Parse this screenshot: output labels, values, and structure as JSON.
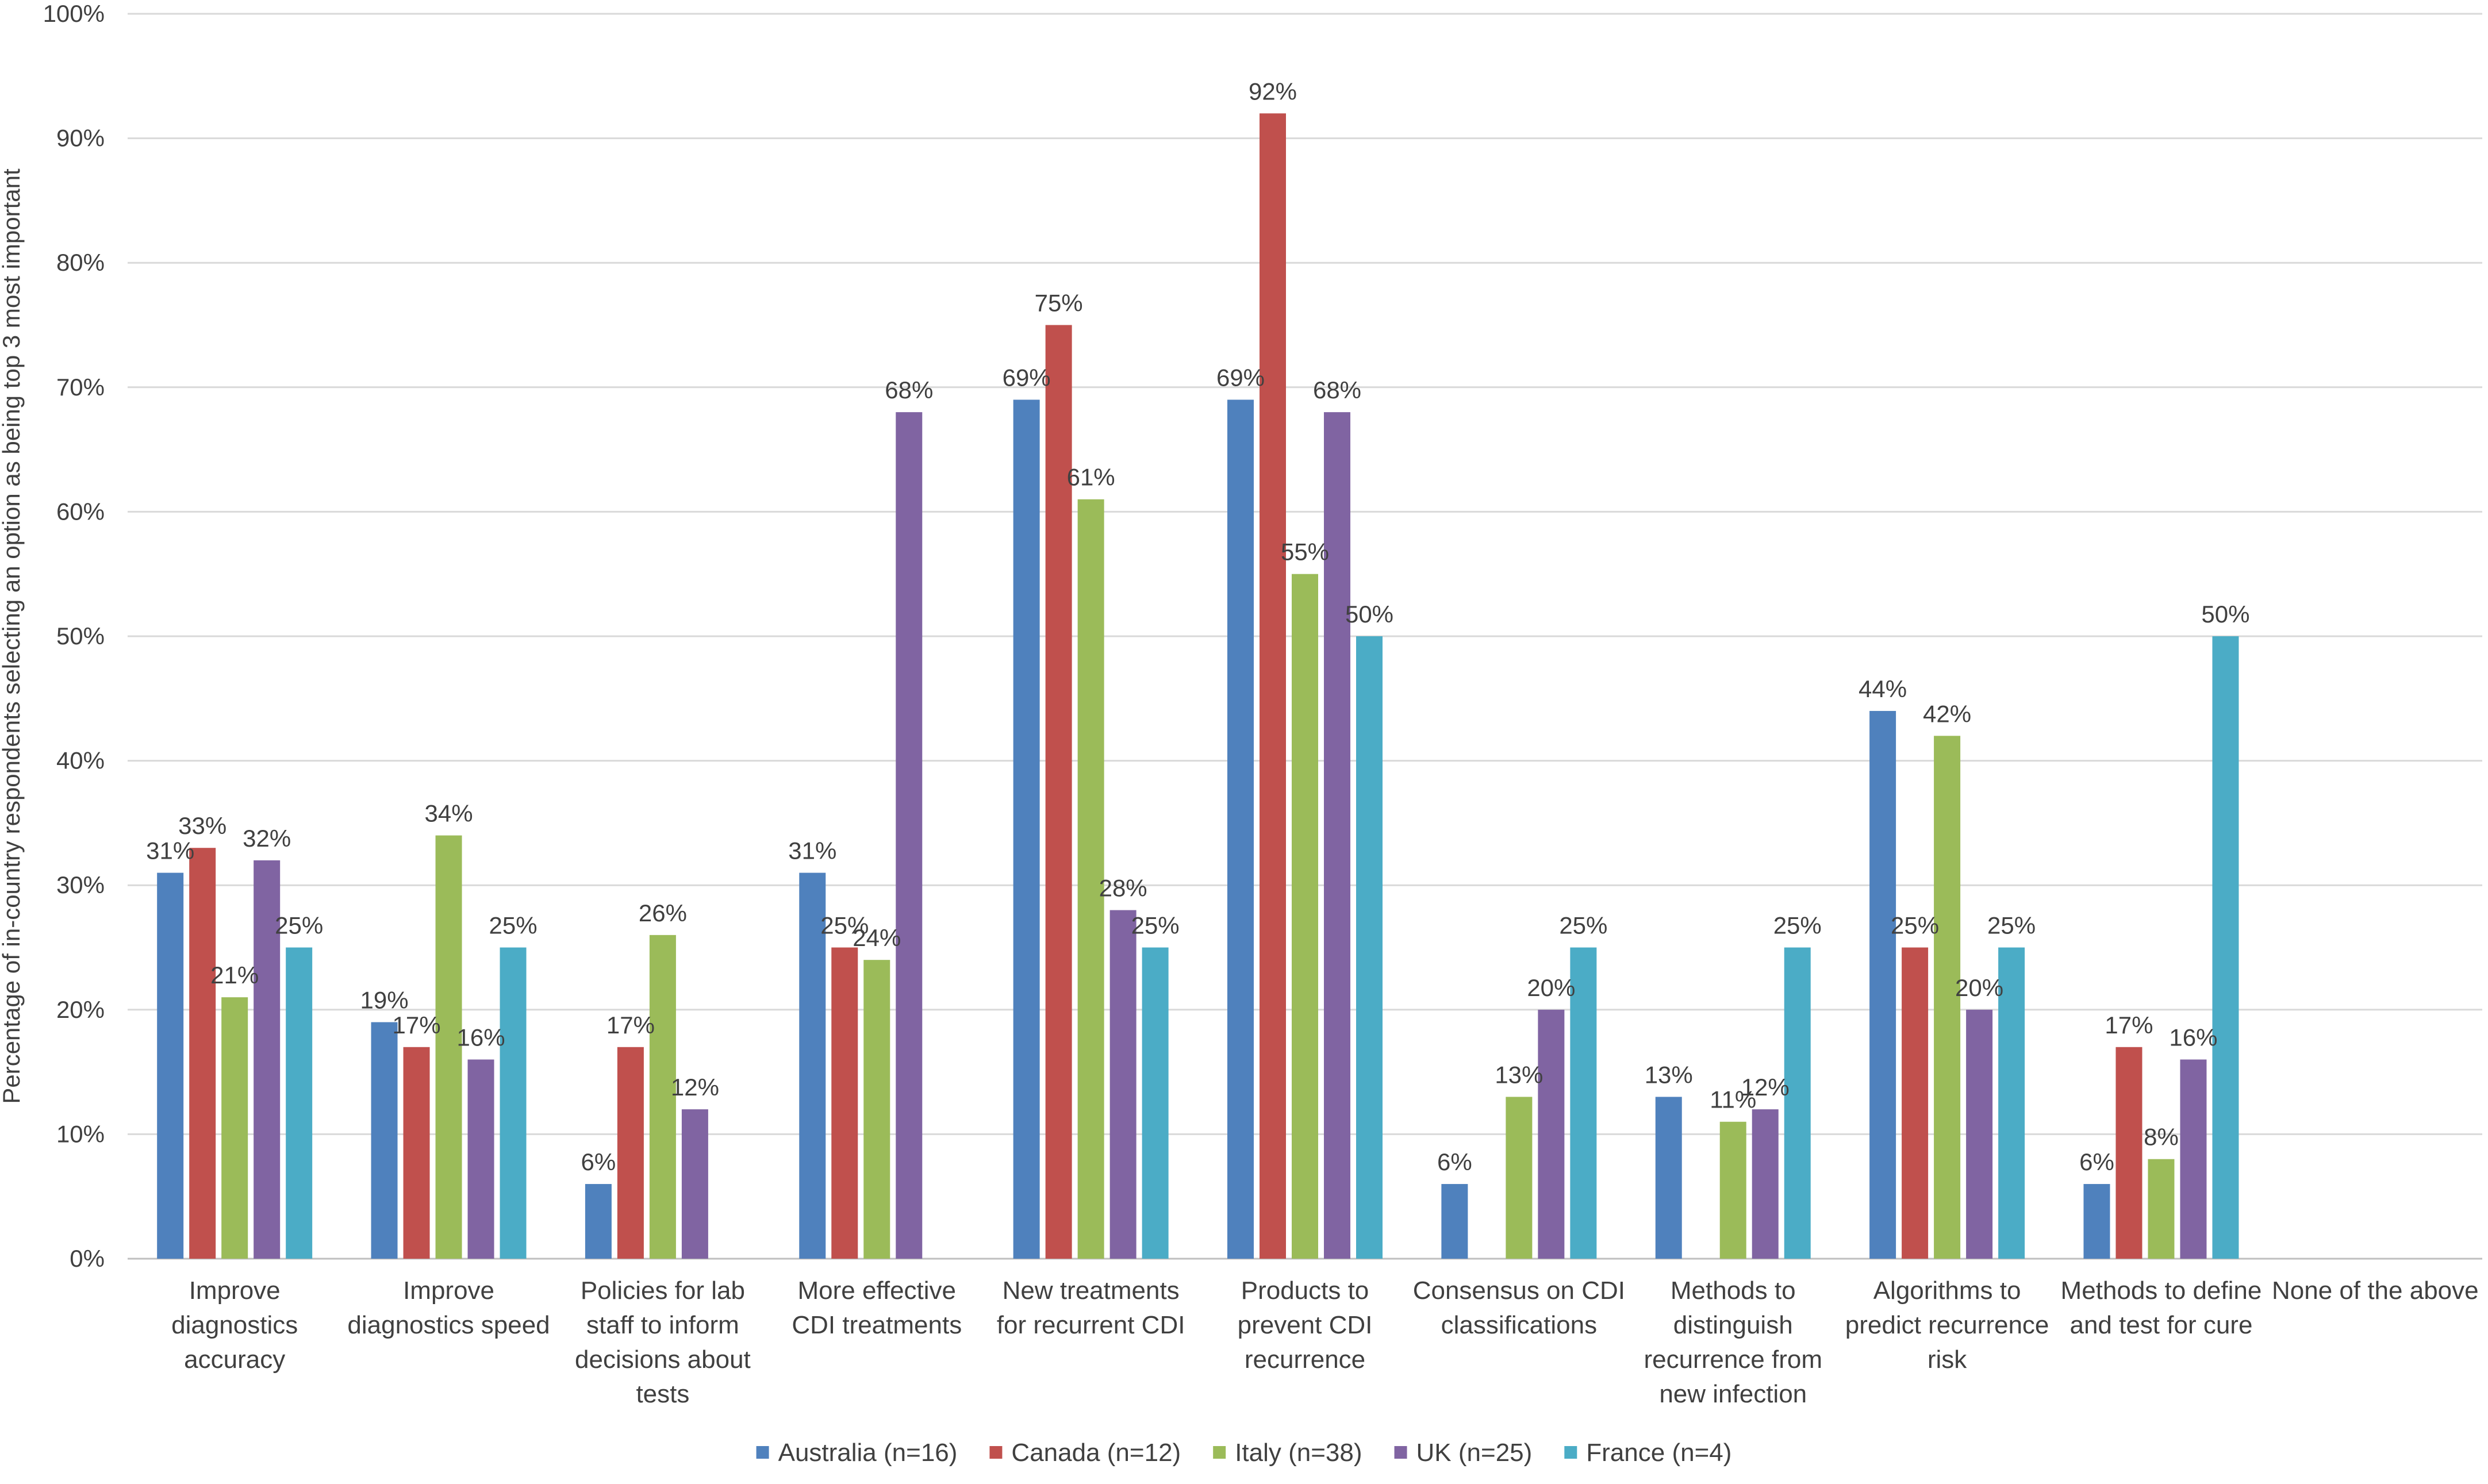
{
  "chart_data": {
    "type": "bar",
    "title": "",
    "xlabel": "",
    "ylabel": "Percentage of in-country respondents selecting an option as being top 3 most important",
    "ylim": [
      0,
      100
    ],
    "yticks": [
      "0%",
      "10%",
      "20%",
      "30%",
      "40%",
      "50%",
      "60%",
      "70%",
      "80%",
      "90%",
      "100%"
    ],
    "grid": true,
    "legend_position": "bottom",
    "categories": [
      [
        "Improve",
        "diagnostics",
        "accuracy"
      ],
      [
        "Improve",
        "diagnostics speed"
      ],
      [
        "Policies for lab",
        "staff to inform",
        "decisions about",
        "tests"
      ],
      [
        "More effective",
        "CDI treatments"
      ],
      [
        "New treatments",
        "for recurrent CDI"
      ],
      [
        "Products to",
        "prevent CDI",
        "recurrence"
      ],
      [
        "Consensus on CDI",
        "classifications"
      ],
      [
        "Methods to",
        "distinguish",
        "recurrence from",
        "new infection"
      ],
      [
        "Algorithms to",
        "predict recurrence",
        "risk"
      ],
      [
        "Methods to define",
        "and test for cure"
      ],
      [
        "None of the above"
      ]
    ],
    "series": [
      {
        "name": "Australia (n=16)",
        "color": "#4F81BD",
        "values": [
          31,
          19,
          6,
          31,
          69,
          69,
          6,
          13,
          44,
          6,
          null
        ],
        "labels": [
          "31%",
          "19%",
          "6%",
          "31%",
          "69%",
          "69%",
          "6%",
          "13%",
          "44%",
          "6%",
          null
        ]
      },
      {
        "name": "Canada (n=12)",
        "color": "#C0504D",
        "values": [
          33,
          17,
          17,
          25,
          75,
          92,
          null,
          null,
          25,
          17,
          null
        ],
        "labels": [
          "33%",
          "17%",
          "17%",
          "25%",
          "75%",
          "92%",
          null,
          null,
          "25%",
          "17%",
          null
        ]
      },
      {
        "name": "Italy (n=38)",
        "color": "#9BBB59",
        "values": [
          21,
          34,
          26,
          24,
          61,
          55,
          13,
          11,
          42,
          8,
          null
        ],
        "labels": [
          "21%",
          "34%",
          "26%",
          "24%",
          "61%",
          "55%",
          "13%",
          "11%",
          "42%",
          "8%",
          null
        ]
      },
      {
        "name": "UK (n=25)",
        "color": "#8064A2",
        "values": [
          32,
          16,
          12,
          68,
          28,
          68,
          20,
          12,
          20,
          16,
          null
        ],
        "labels": [
          "32%",
          "16%",
          "12%",
          "68%",
          "28%",
          "68%",
          "20%",
          "12%",
          "20%",
          "16%",
          null
        ]
      },
      {
        "name": "France (n=4)",
        "color": "#4BACC6",
        "values": [
          25,
          25,
          null,
          null,
          25,
          50,
          25,
          25,
          25,
          50,
          null
        ],
        "labels": [
          "25%",
          "25%",
          null,
          null,
          "25%",
          "50%",
          "25%",
          "25%",
          "25%",
          "50%",
          null
        ]
      }
    ]
  }
}
